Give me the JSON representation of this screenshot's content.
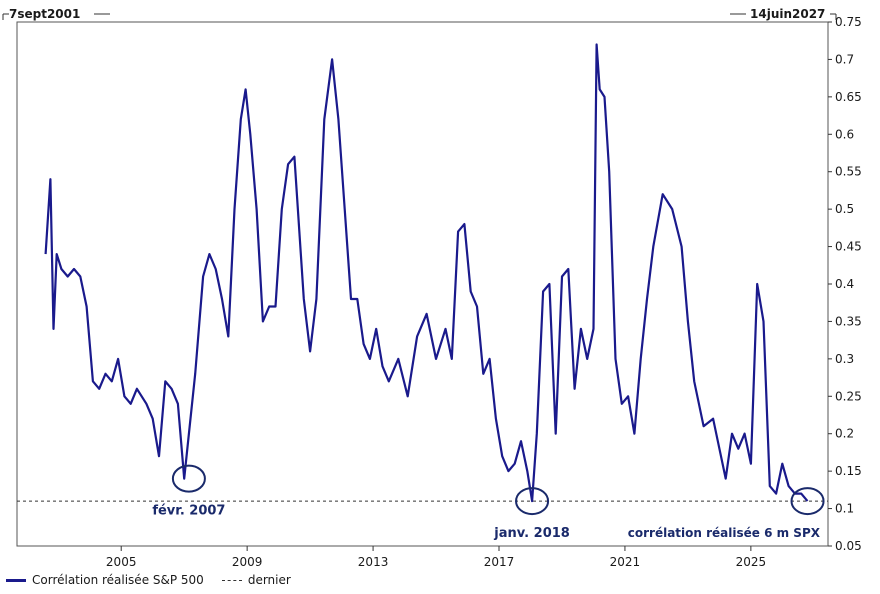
{
  "chart_data": {
    "type": "line",
    "date_range_start": "7sept2001",
    "date_range_end": "14juin2027",
    "x_ticks": [
      "2005",
      "2009",
      "2013",
      "2017",
      "2021",
      "2025"
    ],
    "y_ticks": [
      "0.05",
      "0.1",
      "0.15",
      "0.2",
      "0.25",
      "0.3",
      "0.35",
      "0.4",
      "0.45",
      "0.5",
      "0.55",
      "0.6",
      "0.65",
      "0.7",
      "0.75"
    ],
    "ylim": [
      0.05,
      0.75
    ],
    "xlim": [
      2001.69,
      2027.45
    ],
    "y_axis_side": "right",
    "grid": false,
    "legend_position": "bottom-left",
    "series": [
      {
        "name": "Corrélation réalisée S&P 500",
        "color": "#1a1a8c",
        "x": [
          2002.6,
          2002.75,
          2002.85,
          2002.95,
          2003.1,
          2003.3,
          2003.5,
          2003.7,
          2003.9,
          2004.1,
          2004.3,
          2004.5,
          2004.7,
          2004.9,
          2005.1,
          2005.3,
          2005.5,
          2005.8,
          2006.0,
          2006.2,
          2006.4,
          2006.6,
          2006.8,
          2007.0,
          2007.15,
          2007.35,
          2007.6,
          2007.8,
          2008.0,
          2008.2,
          2008.4,
          2008.6,
          2008.8,
          2008.95,
          2009.1,
          2009.3,
          2009.5,
          2009.7,
          2009.9,
          2010.1,
          2010.3,
          2010.5,
          2010.8,
          2011.0,
          2011.2,
          2011.45,
          2011.7,
          2011.9,
          2012.1,
          2012.3,
          2012.5,
          2012.7,
          2012.9,
          2013.1,
          2013.3,
          2013.5,
          2013.8,
          2014.1,
          2014.4,
          2014.7,
          2015.0,
          2015.3,
          2015.5,
          2015.7,
          2015.9,
          2016.1,
          2016.3,
          2016.5,
          2016.7,
          2016.9,
          2017.1,
          2017.3,
          2017.5,
          2017.7,
          2017.9,
          2018.05,
          2018.2,
          2018.4,
          2018.6,
          2018.8,
          2019.0,
          2019.2,
          2019.4,
          2019.6,
          2019.8,
          2020.0,
          2020.1,
          2020.2,
          2020.35,
          2020.5,
          2020.7,
          2020.9,
          2021.1,
          2021.3,
          2021.5,
          2021.7,
          2021.9,
          2022.2,
          2022.5,
          2022.8,
          2023.0,
          2023.2,
          2023.5,
          2023.8,
          2024.0,
          2024.2,
          2024.4,
          2024.6,
          2024.8,
          2025.0,
          2025.2,
          2025.4,
          2025.6,
          2025.8,
          2026.0,
          2026.2,
          2026.4,
          2026.6,
          2026.8
        ],
        "values": [
          0.44,
          0.54,
          0.34,
          0.44,
          0.42,
          0.41,
          0.42,
          0.41,
          0.37,
          0.27,
          0.26,
          0.28,
          0.27,
          0.3,
          0.25,
          0.24,
          0.26,
          0.24,
          0.22,
          0.17,
          0.27,
          0.26,
          0.24,
          0.14,
          0.2,
          0.28,
          0.41,
          0.44,
          0.42,
          0.38,
          0.33,
          0.5,
          0.62,
          0.66,
          0.6,
          0.5,
          0.35,
          0.37,
          0.37,
          0.5,
          0.56,
          0.57,
          0.38,
          0.31,
          0.38,
          0.62,
          0.7,
          0.62,
          0.5,
          0.38,
          0.38,
          0.32,
          0.3,
          0.34,
          0.29,
          0.27,
          0.3,
          0.25,
          0.33,
          0.36,
          0.3,
          0.34,
          0.3,
          0.47,
          0.48,
          0.39,
          0.37,
          0.28,
          0.3,
          0.22,
          0.17,
          0.15,
          0.16,
          0.19,
          0.15,
          0.11,
          0.2,
          0.39,
          0.4,
          0.2,
          0.41,
          0.42,
          0.26,
          0.34,
          0.3,
          0.34,
          0.72,
          0.66,
          0.65,
          0.55,
          0.3,
          0.24,
          0.25,
          0.2,
          0.3,
          0.38,
          0.45,
          0.52,
          0.5,
          0.45,
          0.35,
          0.27,
          0.21,
          0.22,
          0.18,
          0.14,
          0.2,
          0.18,
          0.2,
          0.16,
          0.4,
          0.35,
          0.13,
          0.12,
          0.16,
          0.13,
          0.12,
          0.12,
          0.11
        ]
      },
      {
        "name": "dernier",
        "style": "dashed",
        "value": 0.11
      }
    ],
    "annotations": [
      {
        "text": "févr. 2007",
        "x": 2007.15,
        "y": 0.14
      },
      {
        "text": "janv. 2018",
        "x": 2018.05,
        "y": 0.11
      },
      {
        "text": "corrélation réalisée 6 m SPX",
        "x": 2026.8,
        "y": 0.11
      }
    ]
  }
}
